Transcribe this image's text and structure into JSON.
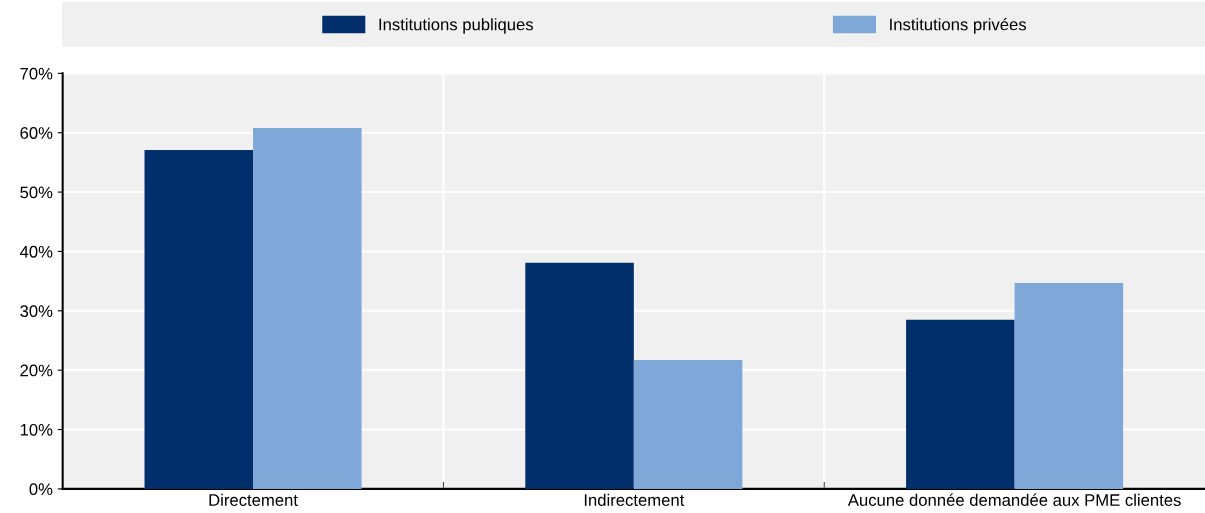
{
  "chart_data": {
    "type": "bar",
    "categories": [
      "Directement",
      "Indirectement",
      "Aucune donnée demandée aux PME clientes"
    ],
    "series": [
      {
        "name": "Institutions publiques",
        "color": "#002f6c",
        "values": [
          57.1,
          38.1,
          28.5
        ]
      },
      {
        "name": "Institutions privées",
        "color": "#7fa7d8",
        "values": [
          60.8,
          21.7,
          34.7
        ]
      }
    ],
    "ylim": [
      0,
      70
    ],
    "yticks": [
      {
        "value": 0,
        "label": "0%"
      },
      {
        "value": 10,
        "label": "10%"
      },
      {
        "value": 20,
        "label": "20%"
      },
      {
        "value": 30,
        "label": "30%"
      },
      {
        "value": 40,
        "label": "40%"
      },
      {
        "value": 50,
        "label": "50%"
      },
      {
        "value": 60,
        "label": "60%"
      },
      {
        "value": 70,
        "label": "70%"
      }
    ],
    "grid": "y",
    "legend": "top"
  }
}
